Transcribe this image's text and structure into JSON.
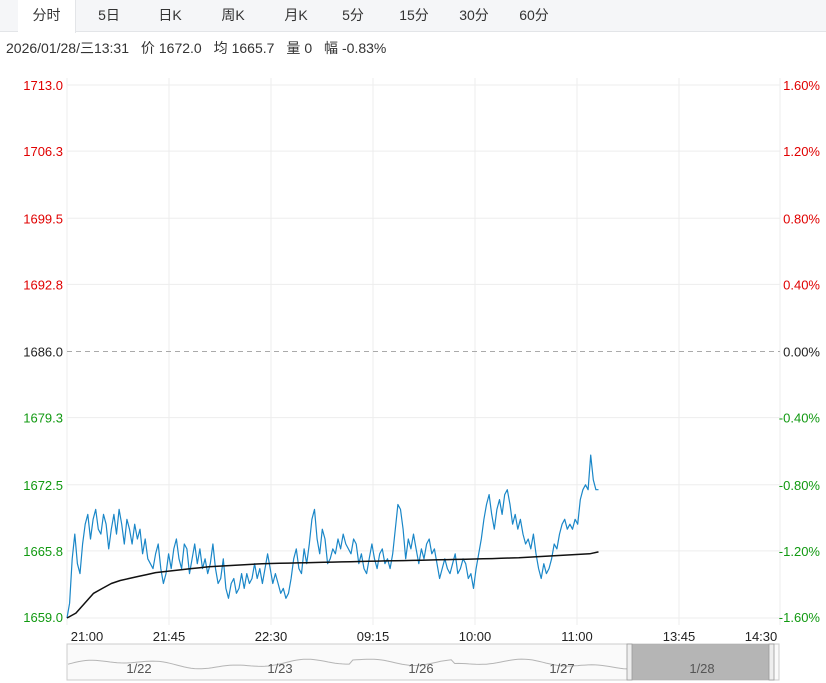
{
  "tabs": [
    {
      "label": "分时",
      "active": true
    },
    {
      "label": "5日",
      "active": false
    },
    {
      "label": "日K",
      "active": false
    },
    {
      "label": "周K",
      "active": false
    },
    {
      "label": "月K",
      "active": false
    },
    {
      "label": "5分",
      "active": false
    },
    {
      "label": "15分",
      "active": false
    },
    {
      "label": "30分",
      "active": false
    },
    {
      "label": "60分",
      "active": false
    }
  ],
  "info": {
    "datetime": "2026/01/28/三13:31",
    "price_label": "价",
    "price": "1672.0",
    "avg_label": "均",
    "avg": "1665.7",
    "vol_label": "量",
    "vol": "0",
    "chg_label": "幅",
    "chg": "-0.83%"
  },
  "colors": {
    "up": "#e00000",
    "down": "#119911",
    "neutral": "#222222",
    "price_line": "#1a87c8",
    "avg_line": "#111111"
  },
  "chart_data": {
    "type": "line",
    "base_price": 1686.0,
    "ylim": [
      1659.0,
      1713.0
    ],
    "y_ticks": [
      "1713.0",
      "1706.3",
      "1699.5",
      "1692.8",
      "1686.0",
      "1679.3",
      "1672.5",
      "1665.8",
      "1659.0"
    ],
    "y_tick_values": [
      1713.0,
      1706.3,
      1699.5,
      1692.8,
      1686.0,
      1679.3,
      1672.5,
      1665.8,
      1659.0
    ],
    "pct_ticks": [
      "1.60%",
      "1.20%",
      "0.80%",
      "0.40%",
      "0.00%",
      "-0.40%",
      "-0.80%",
      "-1.20%",
      "-1.60%"
    ],
    "x_ticks": [
      "21:00",
      "21:45",
      "22:30",
      "09:15",
      "10:00",
      "11:00",
      "13:45",
      "14:30"
    ],
    "series": [
      {
        "values": [
          1659.0,
          1660.5,
          1665.0,
          1667.5,
          1664.5,
          1663.5,
          1666.5,
          1668.5,
          1669.5,
          1667.0,
          1669.0,
          1670.0,
          1668.0,
          1667.5,
          1669.5,
          1668.5,
          1666.0,
          1668.0,
          1669.5,
          1667.5,
          1670.0,
          1668.5,
          1666.5,
          1669.0,
          1668.0,
          1666.5,
          1668.5,
          1667.0,
          1668.0,
          1665.5,
          1667.0,
          1665.0,
          1664.5,
          1664.0,
          1665.5,
          1666.5,
          1664.0,
          1662.5,
          1663.5,
          1665.5,
          1664.0,
          1666.0,
          1667.0,
          1665.0,
          1664.0,
          1666.5,
          1666.0,
          1663.5,
          1665.0,
          1666.5,
          1664.5,
          1666.0,
          1664.0,
          1665.0,
          1663.5,
          1664.5,
          1666.5,
          1664.0,
          1662.5,
          1663.0,
          1665.0,
          1662.0,
          1661.0,
          1662.5,
          1663.0,
          1661.5,
          1662.0,
          1663.5,
          1662.0,
          1663.5,
          1662.5,
          1663.0,
          1664.5,
          1663.0,
          1664.0,
          1662.5,
          1664.0,
          1665.5,
          1664.0,
          1662.5,
          1663.5,
          1662.5,
          1661.5,
          1662.0,
          1661.0,
          1661.5,
          1663.0,
          1665.0,
          1666.0,
          1664.0,
          1663.5,
          1666.0,
          1664.5,
          1666.5,
          1669.0,
          1670.0,
          1667.0,
          1665.5,
          1668.0,
          1667.0,
          1664.5,
          1665.0,
          1666.0,
          1665.5,
          1667.0,
          1666.0,
          1667.5,
          1666.5,
          1666.0,
          1665.5,
          1667.0,
          1666.5,
          1664.5,
          1665.5,
          1664.0,
          1663.5,
          1665.0,
          1666.5,
          1665.0,
          1664.0,
          1665.5,
          1666.0,
          1664.5,
          1665.0,
          1664.0,
          1665.5,
          1668.0,
          1670.5,
          1670.0,
          1668.0,
          1665.0,
          1667.0,
          1666.0,
          1667.5,
          1666.0,
          1664.5,
          1666.0,
          1665.0,
          1666.5,
          1667.0,
          1665.5,
          1666.0,
          1664.5,
          1663.0,
          1664.0,
          1665.0,
          1664.0,
          1663.5,
          1664.5,
          1665.5,
          1663.5,
          1664.0,
          1665.0,
          1664.5,
          1663.0,
          1663.5,
          1662.0,
          1664.0,
          1665.5,
          1667.0,
          1669.0,
          1670.5,
          1671.5,
          1669.5,
          1668.0,
          1670.0,
          1671.0,
          1669.5,
          1671.5,
          1672.0,
          1670.5,
          1668.5,
          1669.5,
          1668.0,
          1669.0,
          1667.5,
          1666.5,
          1667.0,
          1666.0,
          1667.5,
          1665.5,
          1664.0,
          1663.0,
          1664.5,
          1663.5,
          1664.0,
          1665.0,
          1666.5,
          1666.0,
          1667.5,
          1668.5,
          1669.0,
          1668.0,
          1668.5,
          1668.0,
          1669.0,
          1668.5,
          1671.0,
          1672.0,
          1672.5,
          1672.0,
          1675.5,
          1673.0,
          1672.0,
          1672.0
        ],
        "x_start": 0,
        "x_end": 0.7455
      },
      {
        "values": [
          1659.0,
          1659.5,
          1660.5,
          1661.5,
          1662.0,
          1662.5,
          1662.8,
          1663.0,
          1663.2,
          1663.4,
          1663.6,
          1663.7,
          1663.8,
          1663.9,
          1664.0,
          1664.1,
          1664.2,
          1664.25,
          1664.3,
          1664.35,
          1664.4,
          1664.45,
          1664.5,
          1664.52,
          1664.54,
          1664.56,
          1664.58,
          1664.6,
          1664.62,
          1664.64,
          1664.66,
          1664.68,
          1664.7,
          1664.72,
          1664.74,
          1664.76,
          1664.78,
          1664.8,
          1664.82,
          1664.84,
          1664.86,
          1664.88,
          1664.9,
          1664.92,
          1664.94,
          1664.96,
          1664.98,
          1665.0,
          1665.02,
          1665.05,
          1665.08,
          1665.1,
          1665.15,
          1665.2,
          1665.25,
          1665.3,
          1665.35,
          1665.4,
          1665.45,
          1665.5,
          1665.7
        ],
        "x_start": 0,
        "x_end": 0.7455
      }
    ]
  },
  "navigator": {
    "dates": [
      "1/22",
      "1/23",
      "1/26",
      "1/27",
      "1/28"
    ]
  }
}
